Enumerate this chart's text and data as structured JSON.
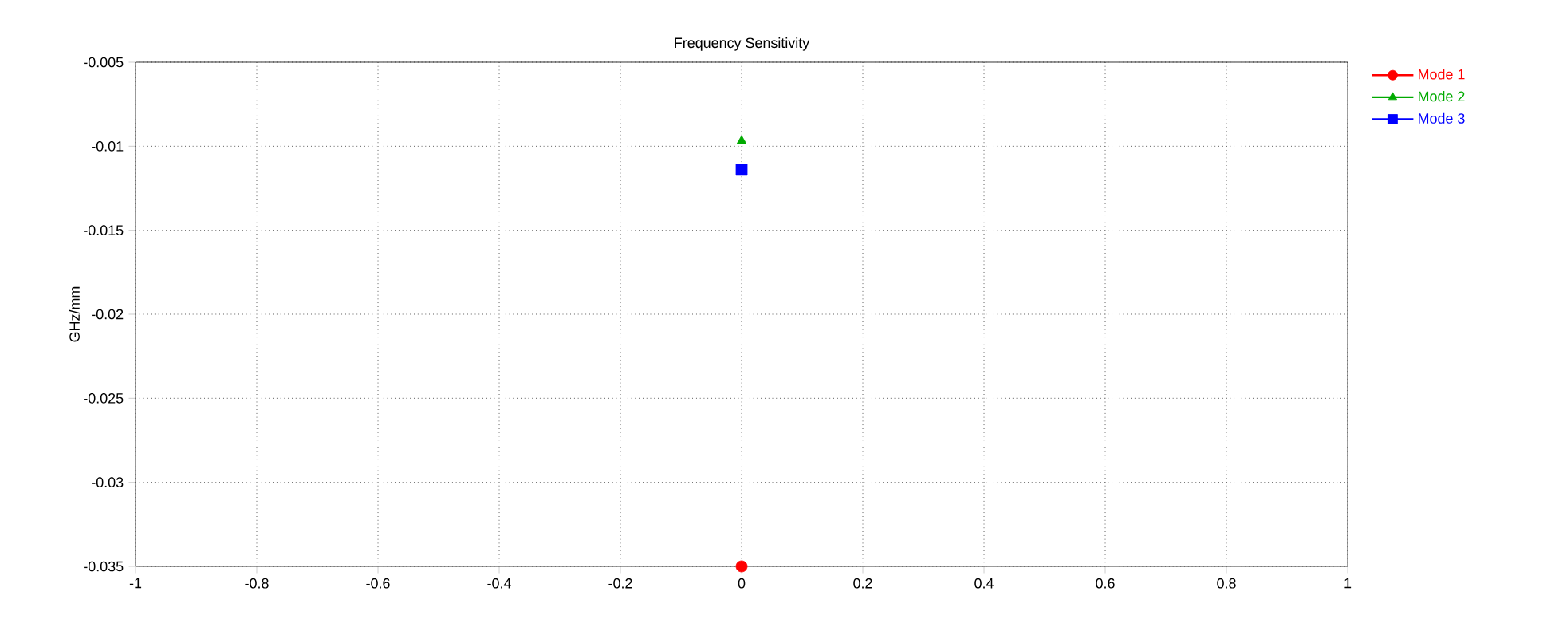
{
  "chart_data": {
    "type": "scatter",
    "title": "Frequency Sensitivity",
    "ylabel": "GHz/mm",
    "x": [
      0
    ],
    "series": [
      {
        "name": "Mode 1",
        "color": "#ff0000",
        "values": [
          -0.035
        ],
        "marker": "circle"
      },
      {
        "name": "Mode 2",
        "color": "#00aa00",
        "values": [
          -0.0097
        ],
        "marker": "triangle"
      },
      {
        "name": "Mode 3",
        "color": "#0000ff",
        "values": [
          -0.0114
        ],
        "marker": "square"
      }
    ],
    "xlim": [
      -1,
      1
    ],
    "xticks": [
      -1,
      -0.8,
      -0.6,
      -0.4,
      -0.2,
      0,
      0.2,
      0.4,
      0.6,
      0.8,
      1
    ],
    "ylim": [
      -0.035,
      -0.005
    ],
    "yticks": [
      -0.035,
      -0.03,
      -0.025,
      -0.02,
      -0.015,
      -0.01,
      -0.005
    ],
    "grid": true,
    "legend": "top right"
  }
}
